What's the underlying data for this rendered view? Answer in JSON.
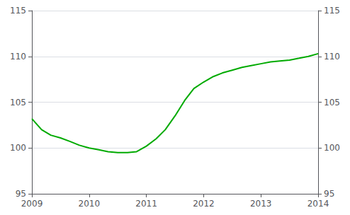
{
  "chart_data": {
    "type": "line",
    "x": [
      2009.0,
      2009.17,
      2009.33,
      2009.5,
      2009.67,
      2009.83,
      2010.0,
      2010.17,
      2010.33,
      2010.5,
      2010.67,
      2010.83,
      2011.0,
      2011.17,
      2011.33,
      2011.5,
      2011.67,
      2011.83,
      2012.0,
      2012.17,
      2012.33,
      2012.5,
      2012.67,
      2012.83,
      2013.0,
      2013.17,
      2013.33,
      2013.5,
      2013.67,
      2013.83,
      2014.0
    ],
    "values": [
      103.2,
      102.0,
      101.4,
      101.1,
      100.7,
      100.3,
      100.0,
      99.8,
      99.6,
      99.5,
      99.5,
      99.6,
      100.2,
      101.0,
      102.0,
      103.5,
      105.2,
      106.5,
      107.2,
      107.8,
      108.2,
      108.5,
      108.8,
      109.0,
      109.2,
      109.4,
      109.5,
      109.6,
      109.8,
      110.0,
      110.3
    ],
    "color": "#00aa00",
    "xlim": [
      2009.0,
      2014.0
    ],
    "xticks": [
      2009,
      2010,
      2011,
      2012,
      2013,
      2014
    ],
    "ylim": [
      95,
      115
    ],
    "yticks": [
      95,
      100,
      105,
      110,
      115
    ],
    "y2lim": [
      95,
      115
    ],
    "y2ticks": [
      95,
      100,
      105,
      110,
      115
    ],
    "grid": true
  }
}
